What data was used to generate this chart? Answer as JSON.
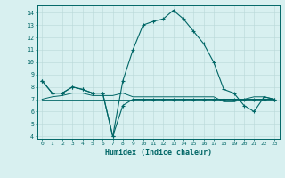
{
  "x": [
    0,
    1,
    2,
    3,
    4,
    5,
    6,
    7,
    8,
    9,
    10,
    11,
    12,
    13,
    14,
    15,
    16,
    17,
    18,
    19,
    20,
    21,
    22,
    23
  ],
  "curve_main": [
    8.5,
    7.5,
    7.5,
    8.0,
    7.8,
    7.5,
    7.5,
    4.0,
    8.5,
    11.0,
    13.0,
    13.3,
    13.5,
    14.2,
    13.5,
    12.5,
    11.5,
    10.0,
    7.8,
    7.5,
    6.5,
    6.0,
    7.2,
    7.0
  ],
  "curve_flat1": [
    8.5,
    7.5,
    7.5,
    8.0,
    7.8,
    7.5,
    7.5,
    4.0,
    6.5,
    7.0,
    7.0,
    7.0,
    7.0,
    7.0,
    7.0,
    7.0,
    7.0,
    7.0,
    7.0,
    7.0,
    7.0,
    7.0,
    7.0,
    7.0
  ],
  "curve_flat2": [
    7.0,
    7.2,
    7.3,
    7.5,
    7.5,
    7.3,
    7.3,
    7.3,
    7.5,
    7.2,
    7.2,
    7.2,
    7.2,
    7.2,
    7.2,
    7.2,
    7.2,
    7.2,
    6.8,
    6.8,
    7.0,
    7.2,
    7.2,
    7.0
  ],
  "curve_flat3": [
    7.0,
    7.0,
    7.0,
    7.0,
    7.0,
    7.0,
    7.0,
    7.0,
    7.0,
    7.0,
    7.0,
    7.0,
    7.0,
    7.0,
    7.0,
    7.0,
    7.0,
    7.0,
    7.0,
    7.0,
    7.0,
    7.0,
    7.0,
    7.0
  ],
  "bg_color": "#d8f0f0",
  "line_color": "#006666",
  "grid_color": "#b8d8d8",
  "xlabel": "Humidex (Indice chaleur)",
  "ylim": [
    3.8,
    14.6
  ],
  "xlim": [
    -0.5,
    23.5
  ],
  "yticks": [
    4,
    5,
    6,
    7,
    8,
    9,
    10,
    11,
    12,
    13,
    14
  ],
  "xticks": [
    0,
    1,
    2,
    3,
    4,
    5,
    6,
    7,
    8,
    9,
    10,
    11,
    12,
    13,
    14,
    15,
    16,
    17,
    18,
    19,
    20,
    21,
    22,
    23
  ]
}
